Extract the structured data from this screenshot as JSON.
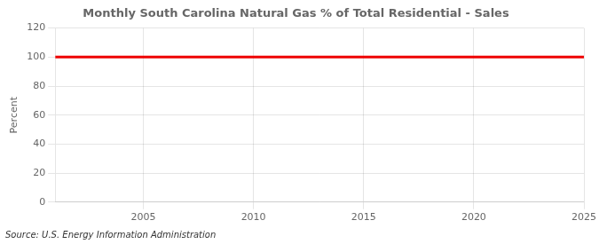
{
  "chart_data": {
    "type": "line",
    "title": "Monthly South Carolina Natural Gas % of Total Residential - Sales",
    "ylabel": "Percent",
    "source": "Source: U.S. Energy Information Administration",
    "x": [
      2001,
      2025
    ],
    "values": [
      100,
      100
    ],
    "color": "#ee0000",
    "xlim": [
      2001,
      2025
    ],
    "xticks": [
      2005,
      2010,
      2015,
      2020,
      2025
    ],
    "ylim": [
      0,
      120
    ],
    "yticks": [
      0,
      20,
      40,
      60,
      80,
      100,
      120
    ],
    "grid": true
  }
}
